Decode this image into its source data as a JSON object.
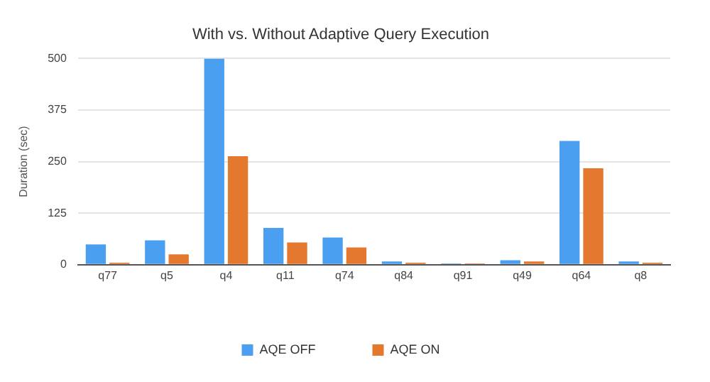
{
  "chart_data": {
    "type": "bar",
    "title": "With vs. Without Adaptive Query Execution",
    "ylabel": "Duration (sec)",
    "categories": [
      "q77",
      "q5",
      "q4",
      "q11",
      "q74",
      "q84",
      "q91",
      "q49",
      "q64",
      "q8"
    ],
    "series": [
      {
        "name": "AQE OFF",
        "color": "#4a9ff0",
        "values": [
          49,
          59,
          500,
          89,
          66,
          8,
          3,
          11,
          300,
          8
        ]
      },
      {
        "name": "AQE ON",
        "color": "#e5782f",
        "values": [
          5,
          25,
          263,
          54,
          42,
          5,
          3,
          8,
          234,
          5
        ]
      }
    ],
    "ylim": [
      0,
      500
    ],
    "yticks": [
      0,
      125,
      250,
      375,
      500
    ],
    "grid": "y",
    "legend": "bottom"
  }
}
